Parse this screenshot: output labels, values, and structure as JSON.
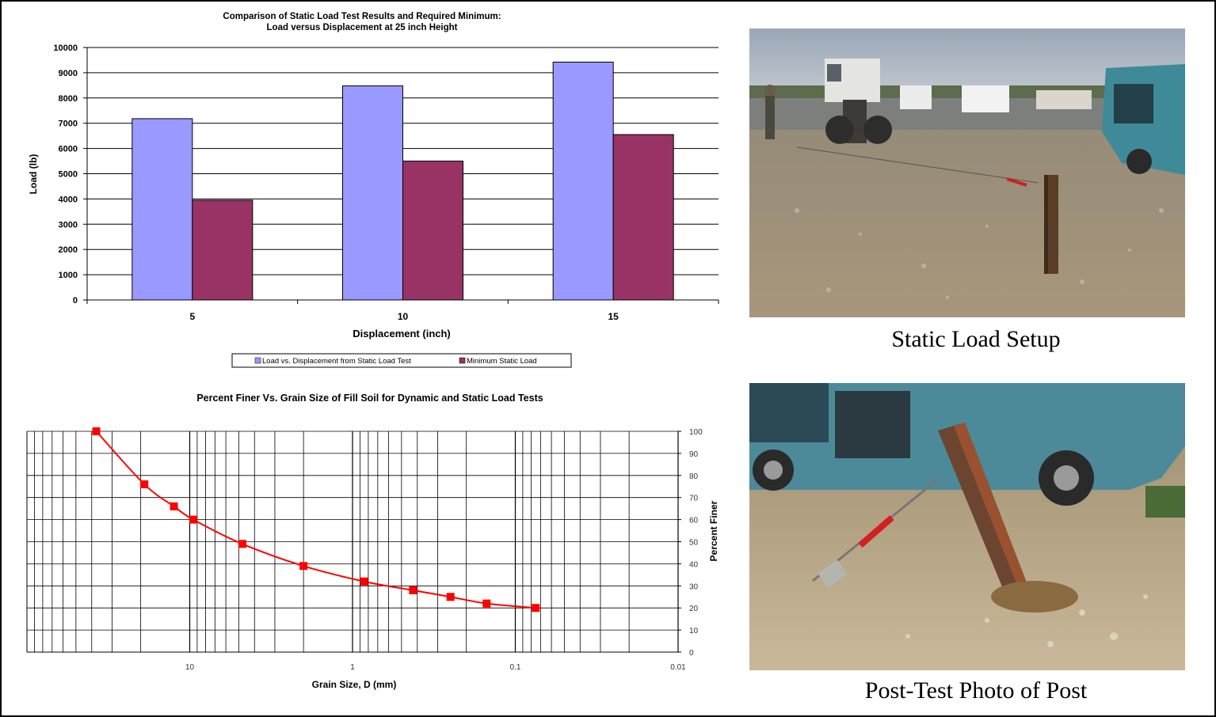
{
  "bar_chart_title_line1": "Comparison of Static Load Test Results and Required Minimum:",
  "bar_chart_title_line2": "Load versus Displacement at 25 inch Height",
  "grain_chart_title": "Percent Finer Vs. Grain Size of Fill Soil for Dynamic and Static Load Tests",
  "photo_top_caption": "Static Load Setup",
  "photo_bottom_caption": "Post-Test Photo of Post",
  "colors": {
    "series_test": "#9999ff",
    "series_min": "#993366",
    "curve": "#ff0000"
  },
  "chart_data": [
    {
      "type": "bar",
      "title": "Comparison of Static Load Test Results and Required Minimum: Load versus Displacement at 25 inch Height",
      "xlabel": "Displacement (inch)",
      "ylabel": "Load (lb)",
      "categories": [
        "5",
        "10",
        "15"
      ],
      "series": [
        {
          "name": "Load vs. Displacement from Static Load Test",
          "values": [
            7180,
            8480,
            9420
          ]
        },
        {
          "name": "Minimum Static Load",
          "values": [
            3950,
            5500,
            6550
          ]
        }
      ],
      "ylim": [
        0,
        10000
      ],
      "yticks": [
        "0",
        "1000",
        "2000",
        "3000",
        "4000",
        "5000",
        "6000",
        "7000",
        "8000",
        "9000",
        "10000"
      ],
      "grid": true,
      "legend": "bottom"
    },
    {
      "type": "line",
      "title": "Percent Finer Vs. Grain Size of Fill Soil for Dynamic and Static Load Tests",
      "xlabel": "Grain Size, D (mm)",
      "ylabel": "Percent Finer",
      "x_scale": "log",
      "x_reversed": true,
      "xlim": [
        100,
        0.01
      ],
      "xticks": [
        "10",
        "1",
        "0.1",
        "0.01"
      ],
      "ylim": [
        0,
        100
      ],
      "yticks": [
        "0",
        "10",
        "20",
        "30",
        "40",
        "50",
        "60",
        "70",
        "80",
        "90",
        "100"
      ],
      "y_axis_side": "right",
      "grid": true,
      "series": [
        {
          "x": [
            37.5,
            19,
            12.5,
            9.5,
            4.75,
            2,
            0.85,
            0.425,
            0.25,
            0.15,
            0.075
          ],
          "y": [
            100,
            76,
            66,
            60,
            49,
            39,
            32,
            28,
            25,
            22,
            20
          ]
        }
      ]
    }
  ]
}
